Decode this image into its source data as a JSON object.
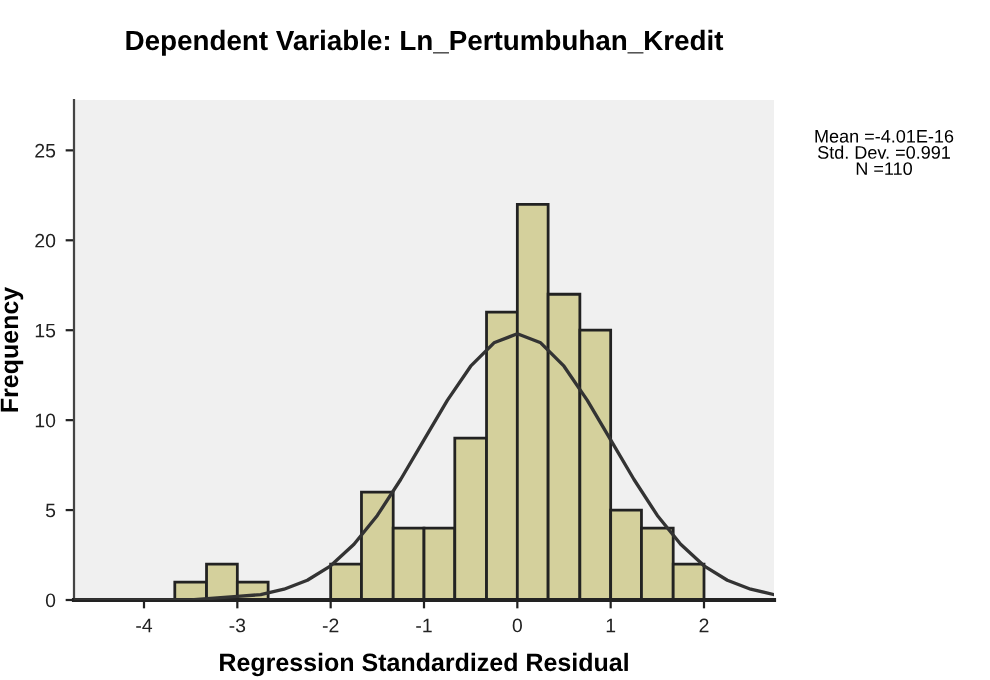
{
  "chart_data": {
    "type": "histogram",
    "title": "Dependent Variable: Ln_Pertumbuhan_Kredit",
    "xlabel": "Regression Standardized Residual",
    "ylabel": "Frequency",
    "bins": [
      -3.67,
      -3.33,
      -3.0,
      -2.67,
      -2.0,
      -1.67,
      -1.33,
      -1.0,
      -0.67,
      -0.33,
      0.0,
      0.33,
      0.67,
      1.0,
      1.33,
      1.67,
      2.0
    ],
    "values": [
      1,
      2,
      1,
      0,
      2,
      6,
      4,
      4,
      9,
      16,
      22,
      17,
      15,
      5,
      4,
      2
    ],
    "color": "#d4d09c",
    "series": [
      {
        "type": "line",
        "color": "#333333",
        "x": [
          -4.75,
          -4.5,
          -4.0,
          -3.5,
          -3.0,
          -2.75,
          -2.5,
          -2.25,
          -2.0,
          -1.75,
          -1.5,
          -1.25,
          -1.0,
          -0.75,
          -0.5,
          -0.25,
          0.0,
          0.25,
          0.5,
          0.75,
          1.0,
          1.25,
          1.5,
          1.75,
          2.0,
          2.25,
          2.5,
          2.75
        ],
        "values": [
          0.0,
          0.0,
          0.0,
          0.0,
          0.2,
          0.3,
          0.6,
          1.1,
          1.9,
          3.1,
          4.7,
          6.7,
          8.9,
          11.1,
          13.0,
          14.3,
          14.8,
          14.3,
          13.0,
          11.1,
          8.9,
          6.7,
          4.7,
          3.1,
          1.9,
          1.1,
          0.6,
          0.3
        ]
      }
    ],
    "xlim": [
      -4.75,
      2.75
    ],
    "ylim": [
      0,
      27.8
    ],
    "xticks": [
      -4,
      -3,
      -2,
      -1,
      0,
      1,
      2
    ],
    "yticks": [
      0,
      5,
      10,
      15,
      20,
      25
    ],
    "grid": false,
    "annotations": [
      "Mean =-4.01E-16\nStd. Dev. =0.991\nN =110"
    ]
  }
}
